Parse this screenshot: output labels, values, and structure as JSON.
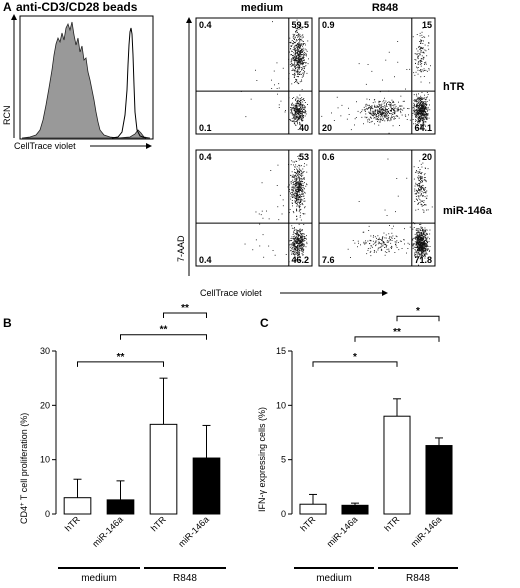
{
  "panel_a": {
    "letter": "A",
    "title": "anti-CD3/CD28 beads",
    "hist_ylabel": "RCN",
    "hist_xlabel": "CellTrace violet",
    "dot_ylabel": "7-AAD",
    "dot_xlabel": "CellTrace violet",
    "col_labels": [
      "medium",
      "R848"
    ],
    "row_labels": [
      "hTR",
      "miR-146a"
    ],
    "quadrants": [
      {
        "row": "hTR",
        "col": "medium",
        "ul": "0.4",
        "ur": "59.5",
        "ll": "0.1",
        "lr": "40"
      },
      {
        "row": "hTR",
        "col": "R848",
        "ul": "0.9",
        "ur": "15",
        "ll": "20",
        "lr": "64.1"
      },
      {
        "row": "miR-146a",
        "col": "medium",
        "ul": "0.4",
        "ur": "53",
        "ll": "0.4",
        "lr": "46.2"
      },
      {
        "row": "miR-146a",
        "col": "R848",
        "ul": "0.6",
        "ur": "20",
        "ll": "7.6",
        "lr": "71.8"
      }
    ]
  },
  "chart_data": [
    {
      "type": "bar",
      "panel": "B",
      "ylabel": "CD4+ T cell proliferation (%)",
      "ylabel_main": "CD4",
      "ylabel_sup": "+",
      "ylabel_rest": " T cell proliferation (%)",
      "ylim": [
        0,
        30
      ],
      "yticks": [
        "0",
        "10",
        "20",
        "30"
      ],
      "categories": [
        "hTR",
        "miR-146a",
        "hTR",
        "miR-146a"
      ],
      "values": [
        3.0,
        2.6,
        16.5,
        10.3
      ],
      "errors": [
        3.4,
        3.5,
        8.5,
        6.0
      ],
      "fill": [
        "white",
        "black",
        "white",
        "black"
      ],
      "groups": [
        {
          "label": "medium",
          "span": [
            0,
            1
          ]
        },
        {
          "label": "R848",
          "span": [
            2,
            3
          ]
        }
      ],
      "significance": [
        {
          "from": 0,
          "to": 2,
          "label": "**",
          "level": 28
        },
        {
          "from": 1,
          "to": 3,
          "label": "**",
          "level": 33
        },
        {
          "from": 2,
          "to": 3,
          "label": "**",
          "level": 37
        }
      ]
    },
    {
      "type": "bar",
      "panel": "C",
      "ylabel": "IFN-γ expressing cells (%)",
      "ylabel_main": "IFN-γ expressing cells (%)",
      "ylabel_sup": "",
      "ylabel_rest": "",
      "ylim": [
        0,
        15
      ],
      "yticks": [
        "0",
        "5",
        "10",
        "15"
      ],
      "categories": [
        "hTR",
        "miR-146a",
        "hTR",
        "miR-146a"
      ],
      "values": [
        0.9,
        0.8,
        9.0,
        6.3
      ],
      "errors": [
        0.9,
        0.2,
        1.6,
        0.7
      ],
      "fill": [
        "white",
        "black",
        "white",
        "black"
      ],
      "groups": [
        {
          "label": "medium",
          "span": [
            0,
            1
          ]
        },
        {
          "label": "R848",
          "span": [
            2,
            3
          ]
        }
      ],
      "significance": [
        {
          "from": 0,
          "to": 2,
          "label": "*",
          "level": 14
        },
        {
          "from": 1,
          "to": 3,
          "label": "**",
          "level": 16.3
        },
        {
          "from": 2,
          "to": 3,
          "label": "*",
          "level": 18.2
        }
      ]
    }
  ]
}
